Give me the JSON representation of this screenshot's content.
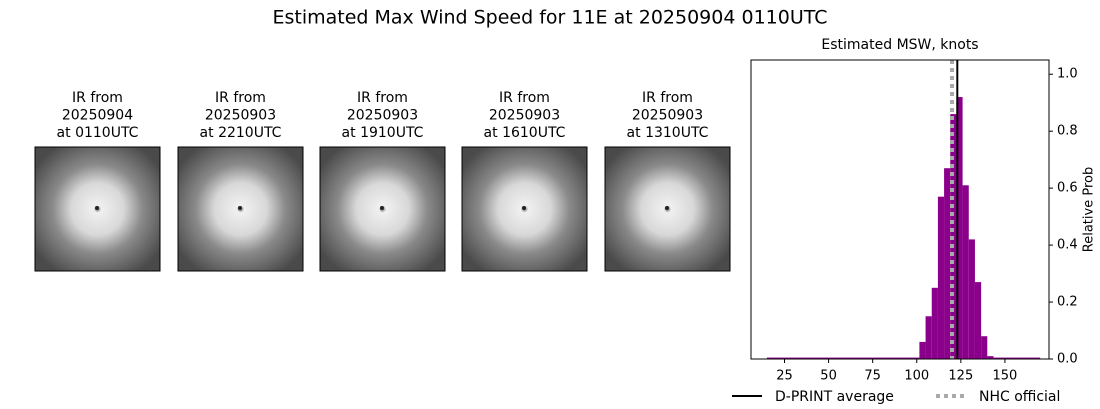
{
  "title": "Estimated Max Wind Speed for 11E at 20250904 0110UTC",
  "images": [
    {
      "lines": [
        "IR from",
        "20250904",
        "at 0110UTC"
      ]
    },
    {
      "lines": [
        "IR from",
        "20250903",
        "at 2210UTC"
      ]
    },
    {
      "lines": [
        "IR from",
        "20250903",
        "at 1910UTC"
      ]
    },
    {
      "lines": [
        "IR from",
        "20250903",
        "at 1610UTC"
      ]
    },
    {
      "lines": [
        "IR from",
        "20250903",
        "at 1310UTC"
      ]
    }
  ],
  "chart_data": {
    "type": "histogram",
    "title": "Estimated MSW, knots",
    "ylabel": "Relative Prob",
    "bins": [
      15,
      101.5,
      105,
      108.5,
      112,
      115.5,
      119,
      122.5,
      126,
      129.5,
      133,
      136.5,
      140,
      143.5,
      170
    ],
    "values": [
      0.005,
      0.06,
      0.15,
      0.25,
      0.57,
      0.67,
      0.86,
      0.92,
      0.61,
      0.42,
      0.27,
      0.08,
      0.01,
      0.005
    ],
    "color": "#8b008b",
    "xlim": [
      6,
      175
    ],
    "ylim": [
      0,
      1.05
    ],
    "xticks": [
      25,
      50,
      75,
      100,
      125,
      150
    ],
    "yticks": [
      {
        "value": 0,
        "label": "0.0"
      },
      {
        "value": 0.2,
        "label": "0.2"
      },
      {
        "value": 0.4,
        "label": "0.4"
      },
      {
        "value": 0.6,
        "label": "0.6"
      },
      {
        "value": 0.8,
        "label": "0.8"
      },
      {
        "value": 1.0,
        "label": "1.0"
      }
    ],
    "lines": [
      {
        "name": "D-PRINT average",
        "value": 123,
        "color": "#000000",
        "style": "solid"
      },
      {
        "name": "NHC official",
        "value": 120,
        "color": "#aaaaaa",
        "style": "dotted"
      }
    ]
  }
}
